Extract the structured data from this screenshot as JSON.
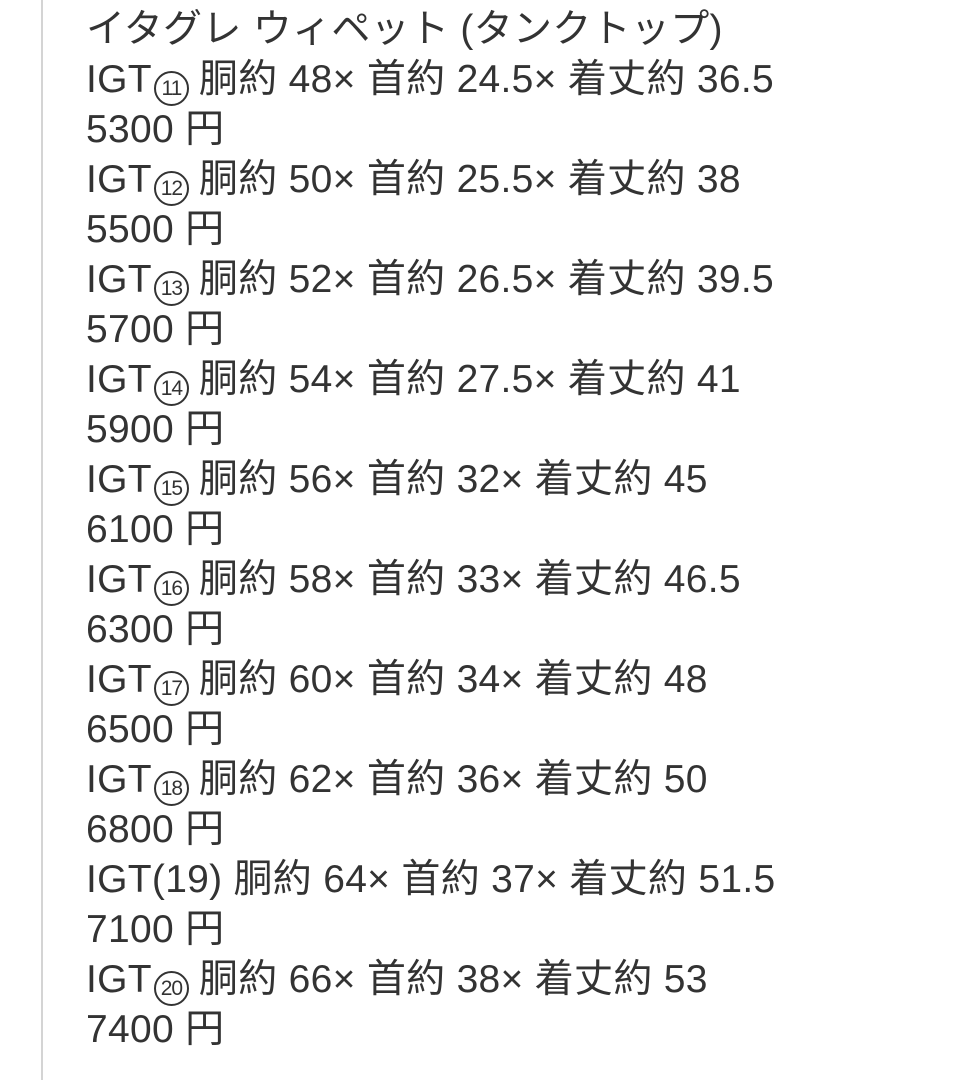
{
  "listing": {
    "title": "イタグレ ウィペット (タンクトップ)",
    "items": [
      {
        "code": "IGT",
        "num": "11",
        "spec": "胴約 48× 首約 24.5× 着丈約 36.5",
        "price": "5300 円"
      },
      {
        "code": "IGT",
        "num": "12",
        "spec": "胴約 50× 首約 25.5× 着丈約 38",
        "price": "5500 円"
      },
      {
        "code": "IGT",
        "num": "13",
        "spec": "胴約 52× 首約 26.5× 着丈約 39.5",
        "price": "5700 円"
      },
      {
        "code": "IGT",
        "num": "14",
        "spec": "胴約 54× 首約 27.5× 着丈約 41",
        "price": "5900 円"
      },
      {
        "code": "IGT",
        "num": "15",
        "spec": "胴約 56× 首約 32× 着丈約 45",
        "price": "6100 円"
      },
      {
        "code": "IGT",
        "num": "16",
        "spec": "胴約 58× 首約 33× 着丈約 46.5",
        "price": "6300 円"
      },
      {
        "code": "IGT",
        "num": "17",
        "spec": "胴約 60× 首約 34× 着丈約 48",
        "price": "6500 円"
      },
      {
        "code": "IGT",
        "num": "18",
        "spec": "胴約 62× 首約 36× 着丈約 50",
        "price": "6800 円"
      },
      {
        "code": "IGT",
        "num": "(19)",
        "spec": "胴約 64× 首約 37× 着丈約 51.5",
        "price": "7100 円"
      },
      {
        "code": "IGT",
        "num": "20",
        "spec": "胴約 66× 首約 38× 着丈約 53",
        "price": "7400 円"
      }
    ],
    "colors": {
      "text": "#333333",
      "border": "#d4d4d4",
      "background": "#ffffff"
    }
  }
}
